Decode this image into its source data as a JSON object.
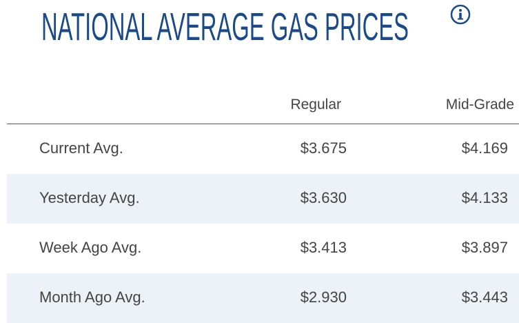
{
  "header": {
    "title": "NATIONAL AVERAGE GAS PRICES"
  },
  "table": {
    "columns": [
      "Regular",
      "Mid-Grade"
    ],
    "rows": [
      [
        "Current Avg.",
        "$3.675",
        "$4.169"
      ],
      [
        "Yesterday Avg.",
        "$3.630",
        "$4.133"
      ],
      [
        "Week Ago Avg.",
        "$3.413",
        "$3.897"
      ],
      [
        "Month Ago Avg.",
        "$2.930",
        "$3.443"
      ]
    ]
  }
}
